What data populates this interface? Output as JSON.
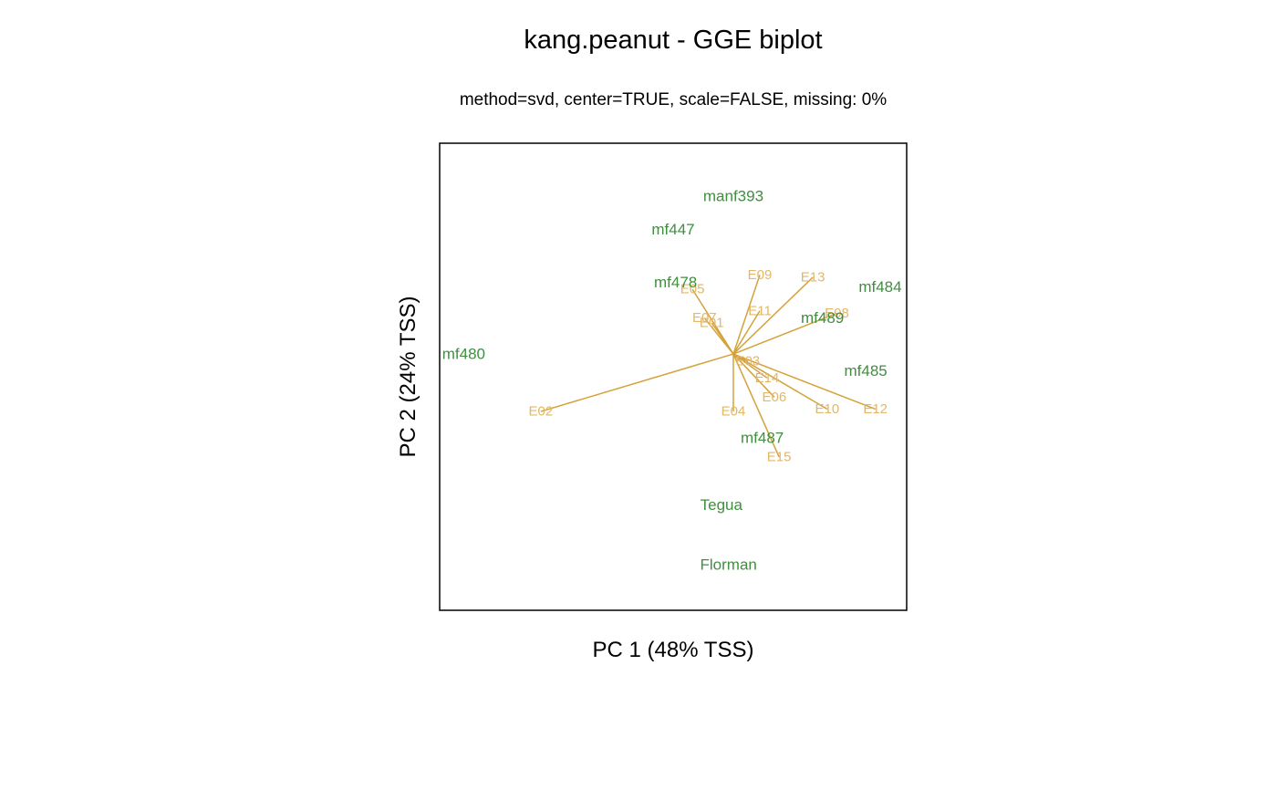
{
  "colors": {
    "genotype": "#3f8f3f",
    "environment": "#d4a23a",
    "environment_text": "#e3b768",
    "frame": "#000000"
  },
  "chart_data": {
    "type": "scatter",
    "title": "kang.peanut - GGE biplot",
    "subtitle": "method=svd, center=TRUE, scale=FALSE, missing: 0%",
    "xlabel": "PC 1 (48% TSS)",
    "ylabel": "PC 2 (24% TSS)",
    "xlim": [
      -1.22,
      0.72
    ],
    "ylim": [
      -1.07,
      0.88
    ],
    "grid": false,
    "axis_ticks": false,
    "genotypes": [
      {
        "name": "manf393",
        "x": 0.0,
        "y": 0.66
      },
      {
        "name": "mf447",
        "x": -0.25,
        "y": 0.52
      },
      {
        "name": "mf478",
        "x": -0.24,
        "y": 0.3
      },
      {
        "name": "mf484",
        "x": 0.61,
        "y": 0.28
      },
      {
        "name": "mf489",
        "x": 0.37,
        "y": 0.15
      },
      {
        "name": "mf480",
        "x": -1.12,
        "y": 0.0
      },
      {
        "name": "mf485",
        "x": 0.55,
        "y": -0.07
      },
      {
        "name": "mf487",
        "x": 0.12,
        "y": -0.35
      },
      {
        "name": "Tegua",
        "x": -0.05,
        "y": -0.63
      },
      {
        "name": "Florman",
        "x": -0.02,
        "y": -0.88
      }
    ],
    "environments": [
      {
        "name": "E01",
        "x": -0.09,
        "y": 0.13
      },
      {
        "name": "E02",
        "x": -0.8,
        "y": -0.24
      },
      {
        "name": "E03",
        "x": 0.06,
        "y": -0.03
      },
      {
        "name": "E04",
        "x": 0.0,
        "y": -0.24
      },
      {
        "name": "E05",
        "x": -0.17,
        "y": 0.27
      },
      {
        "name": "E06",
        "x": 0.17,
        "y": -0.18
      },
      {
        "name": "E07",
        "x": -0.12,
        "y": 0.15
      },
      {
        "name": "E08",
        "x": 0.43,
        "y": 0.17
      },
      {
        "name": "E09",
        "x": 0.11,
        "y": 0.33
      },
      {
        "name": "E10",
        "x": 0.39,
        "y": -0.23
      },
      {
        "name": "E11",
        "x": 0.11,
        "y": 0.18
      },
      {
        "name": "E12",
        "x": 0.59,
        "y": -0.23
      },
      {
        "name": "E13",
        "x": 0.33,
        "y": 0.32
      },
      {
        "name": "E14",
        "x": 0.14,
        "y": -0.1
      },
      {
        "name": "E15",
        "x": 0.19,
        "y": -0.43
      }
    ]
  }
}
